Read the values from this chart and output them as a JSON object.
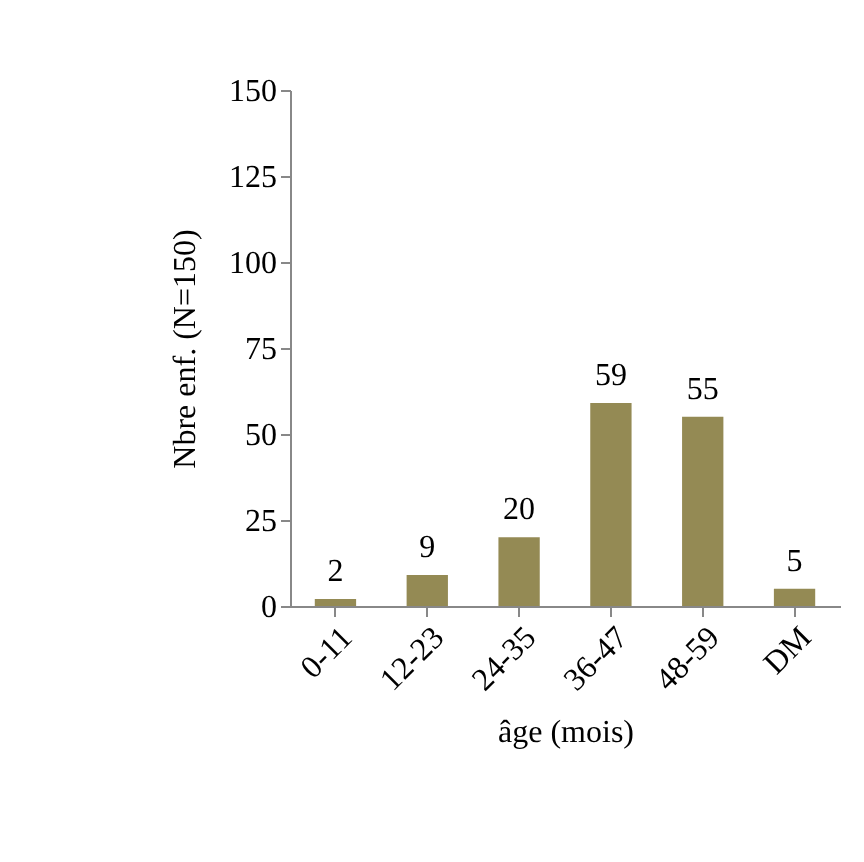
{
  "chart_data": {
    "type": "bar",
    "xlabel": "âge (mois)",
    "ylabel": "Nbre enf. (N=150)",
    "categories": [
      "0-11",
      "12-23",
      "24-35",
      "36-47",
      "48-59",
      "DM"
    ],
    "values": [
      2,
      9,
      20,
      59,
      55,
      5
    ],
    "color": "#948a54",
    "data_labels": true,
    "grid": false,
    "ylim": [
      0,
      150
    ],
    "yticks": [
      0,
      25,
      50,
      75,
      100,
      125,
      150
    ]
  }
}
